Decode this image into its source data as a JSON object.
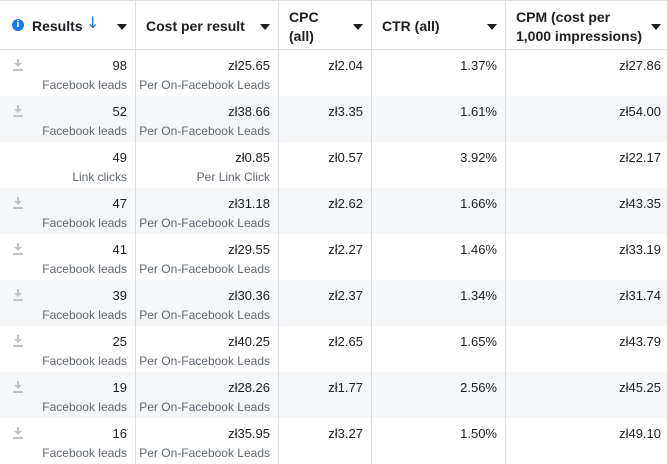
{
  "headers": {
    "results": "Results",
    "cost_per_result": "Cost per result",
    "cpc_line1": "CPC",
    "cpc_line2": "(all)",
    "ctr": "CTR (all)",
    "cpm_line1": "CPM (cost per",
    "cpm_line2": "1,000 impressions)"
  },
  "icons": {
    "info": "info-icon",
    "sort": "arrow-down-icon",
    "caret": "caret-down-icon",
    "download": "download-icon"
  },
  "colors": {
    "accent": "#1877f2",
    "alt_row": "#f5f6f7",
    "border": "#dadde1"
  },
  "rows": [
    {
      "results": "98",
      "result_type": "Facebook leads",
      "cost": "zł25.65",
      "cost_type": "Per On-Facebook Leads",
      "cpc": "zł2.04",
      "ctr": "1.37%",
      "cpm": "zł27.86",
      "download": true
    },
    {
      "results": "52",
      "result_type": "Facebook leads",
      "cost": "zł38.66",
      "cost_type": "Per On-Facebook Leads",
      "cpc": "zł3.35",
      "ctr": "1.61%",
      "cpm": "zł54.00",
      "download": true
    },
    {
      "results": "49",
      "result_type": "Link clicks",
      "cost": "zł0.85",
      "cost_type": "Per Link Click",
      "cpc": "zł0.57",
      "ctr": "3.92%",
      "cpm": "zł22.17",
      "download": false
    },
    {
      "results": "47",
      "result_type": "Facebook leads",
      "cost": "zł31.18",
      "cost_type": "Per On-Facebook Leads",
      "cpc": "zł2.62",
      "ctr": "1.66%",
      "cpm": "zł43.35",
      "download": true
    },
    {
      "results": "41",
      "result_type": "Facebook leads",
      "cost": "zł29.55",
      "cost_type": "Per On-Facebook Leads",
      "cpc": "zł2.27",
      "ctr": "1.46%",
      "cpm": "zł33.19",
      "download": true
    },
    {
      "results": "39",
      "result_type": "Facebook leads",
      "cost": "zł30.36",
      "cost_type": "Per On-Facebook Leads",
      "cpc": "zł2.37",
      "ctr": "1.34%",
      "cpm": "zł31.74",
      "download": true
    },
    {
      "results": "25",
      "result_type": "Facebook leads",
      "cost": "zł40.25",
      "cost_type": "Per On-Facebook Leads",
      "cpc": "zł2.65",
      "ctr": "1.65%",
      "cpm": "zł43.79",
      "download": true
    },
    {
      "results": "19",
      "result_type": "Facebook leads",
      "cost": "zł28.26",
      "cost_type": "Per On-Facebook Leads",
      "cpc": "zł1.77",
      "ctr": "2.56%",
      "cpm": "zł45.25",
      "download": true
    },
    {
      "results": "16",
      "result_type": "Facebook leads",
      "cost": "zł35.95",
      "cost_type": "Per On-Facebook Leads",
      "cpc": "zł3.27",
      "ctr": "1.50%",
      "cpm": "zł49.10",
      "download": true
    }
  ]
}
